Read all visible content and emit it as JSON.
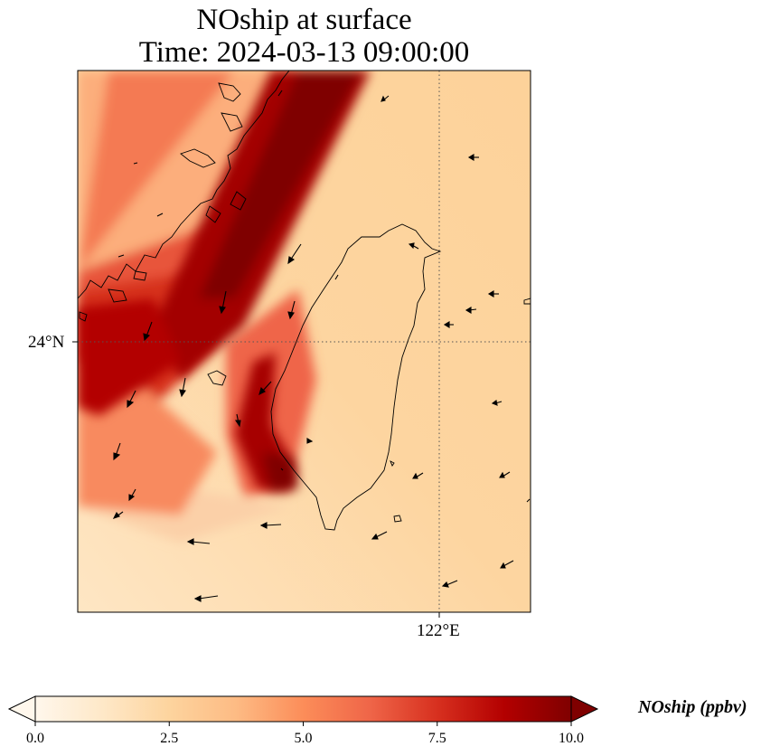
{
  "title_line1": "NOship at surface",
  "title_line2": "Time: 2024-03-13 09:00:00",
  "gridlines": {
    "lat_label": "24°N",
    "lon_label": "122°E",
    "style": "dotted"
  },
  "colorbar": {
    "label": "NOship (ppbv)",
    "ticks": [
      "0.0",
      "2.5",
      "5.0",
      "7.5",
      "10.0"
    ],
    "min": 0,
    "max": 10,
    "extend": "both",
    "colormap": "OrRd",
    "stops": [
      "#fff7ec",
      "#fee8c8",
      "#fdd49e",
      "#fdbb84",
      "#fc8d59",
      "#ef6548",
      "#d7301f",
      "#b30000",
      "#7f0000"
    ]
  },
  "field_colors": {
    "background": "#fdd9a8",
    "max": "#7f0000"
  },
  "wind_arrow_color": "#000000"
}
